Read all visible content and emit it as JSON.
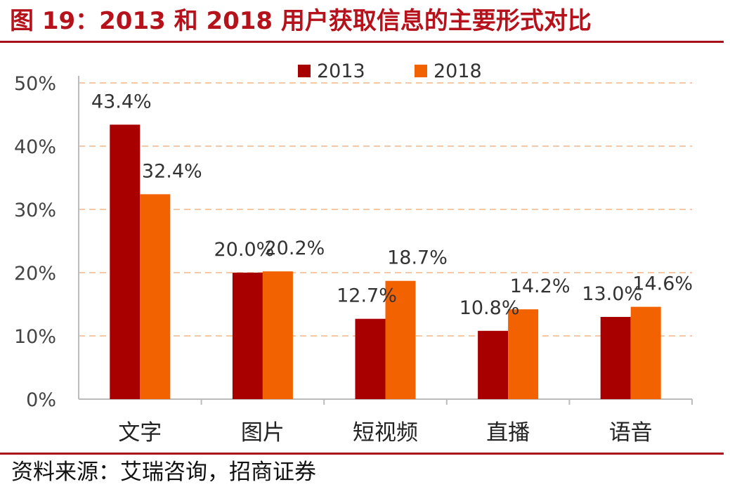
{
  "title": "图 19：2013 和 2018 用户获取信息的主要形式对比",
  "source": "资料来源：艾瑞咨询，招商证券",
  "colors": {
    "brand": "#b5121b",
    "series_2013": "#a80000",
    "series_2018": "#f26200",
    "grid": "#f5c8a8",
    "axis": "#bbbbbb"
  },
  "chart_data": {
    "type": "bar",
    "categories": [
      "文字",
      "图片",
      "短视频",
      "直播",
      "语音"
    ],
    "series": [
      {
        "name": "2013",
        "values": [
          43.4,
          20.0,
          12.7,
          10.8,
          13.0
        ],
        "labels": [
          "43.4%",
          "20.0%",
          "12.7%",
          "10.8%",
          "13.0%"
        ]
      },
      {
        "name": "2018",
        "values": [
          32.4,
          20.2,
          18.7,
          14.2,
          14.6
        ],
        "labels": [
          "32.4%",
          "20.2%",
          "18.7%",
          "14.2%",
          "14.6%"
        ]
      }
    ],
    "yticks": [
      "0%",
      "10%",
      "20%",
      "30%",
      "40%",
      "50%"
    ],
    "ylim": [
      0,
      50
    ],
    "grid": true,
    "legend": "top-center"
  }
}
